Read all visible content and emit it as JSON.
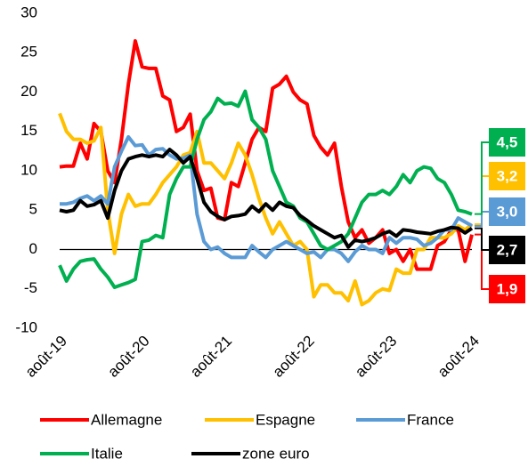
{
  "chart_data": {
    "type": "line",
    "categories": [
      "août-19",
      null,
      null,
      null,
      null,
      null,
      null,
      null,
      null,
      null,
      null,
      null,
      "août-20",
      null,
      null,
      null,
      null,
      null,
      null,
      null,
      null,
      null,
      null,
      null,
      "août-21",
      null,
      null,
      null,
      null,
      null,
      null,
      null,
      null,
      null,
      null,
      null,
      "août-22",
      null,
      null,
      null,
      null,
      null,
      null,
      null,
      null,
      null,
      null,
      null,
      "août-23",
      null,
      null,
      null,
      null,
      null,
      null,
      null,
      null,
      null,
      null,
      null,
      "août-24"
    ],
    "ylim": [
      -10,
      30
    ],
    "yticks": [
      -10,
      -5,
      0,
      5,
      10,
      15,
      20,
      25,
      30
    ],
    "grid": false,
    "series": [
      {
        "name": "Allemagne",
        "color": "#ff0000",
        "values": [
          10.5,
          10.6,
          10.6,
          13.5,
          11.5,
          16,
          15,
          10,
          8.5,
          14,
          21,
          26.5,
          23.2,
          23,
          23,
          19.5,
          19,
          15,
          15.5,
          17.2,
          10,
          7.5,
          7.8,
          4,
          3.8,
          8.5,
          8,
          11,
          14,
          15.5,
          15,
          20.5,
          21,
          22,
          20,
          19,
          18.5,
          14.5,
          13,
          12,
          13.5,
          8,
          3.5,
          1.5,
          2.5,
          0.8,
          1.5,
          2.5,
          -0.5,
          0,
          -1.5,
          0,
          -2.5,
          -2.5,
          -2.5,
          0.5,
          1,
          2.5,
          2.5,
          -1.5,
          1.9
        ],
        "value_labels": [
          null,
          null,
          null,
          null,
          null,
          null,
          null,
          null,
          null,
          null,
          null,
          null,
          null,
          null,
          null,
          null,
          null,
          null,
          null,
          null,
          null,
          null,
          null,
          null,
          null,
          null,
          null,
          null,
          null,
          null,
          null,
          null,
          null,
          null,
          null,
          null,
          null,
          null,
          null,
          null,
          null,
          null,
          null,
          null,
          null,
          null,
          null,
          null,
          null,
          null,
          null,
          null,
          null,
          null,
          null,
          null,
          null,
          null,
          null,
          null,
          "1,9"
        ]
      },
      {
        "name": "Espagne",
        "color": "#ffc000",
        "values": [
          17.3,
          15,
          14,
          14,
          13.5,
          13.8,
          15.5,
          5,
          -0.5,
          4.5,
          7,
          5.5,
          5.8,
          5.8,
          7,
          8.5,
          9.5,
          10.5,
          12,
          12.3,
          15,
          11,
          11,
          10,
          9,
          11,
          13.5,
          12,
          9.5,
          6.5,
          4,
          2,
          3.5,
          2,
          0.5,
          1,
          0,
          -6,
          -4.5,
          -4.5,
          -5.5,
          -5.5,
          -6.5,
          -4,
          -7,
          -6.5,
          -5.5,
          -5,
          -5.2,
          -2.5,
          -3,
          -3,
          0,
          0,
          1.5,
          1.5,
          1.5,
          2,
          3,
          2.5,
          3.2
        ],
        "value_labels": [
          null,
          null,
          null,
          null,
          null,
          null,
          null,
          null,
          null,
          null,
          null,
          null,
          null,
          null,
          null,
          null,
          null,
          null,
          null,
          null,
          null,
          null,
          null,
          null,
          null,
          null,
          null,
          null,
          null,
          null,
          null,
          null,
          null,
          null,
          null,
          null,
          null,
          null,
          null,
          null,
          null,
          null,
          null,
          null,
          null,
          null,
          null,
          null,
          null,
          null,
          null,
          null,
          null,
          null,
          null,
          null,
          null,
          null,
          null,
          null,
          "3,2"
        ]
      },
      {
        "name": "France",
        "color": "#5b9bd5",
        "values": [
          5.8,
          5.8,
          6,
          6.5,
          6.8,
          6.2,
          6.8,
          5.8,
          10.5,
          12.5,
          14.3,
          13.2,
          13.3,
          12,
          12.7,
          12.8,
          12,
          11.5,
          11.6,
          12,
          4.5,
          1,
          0,
          0.3,
          -0.5,
          -1,
          -1,
          -1,
          0.5,
          -0.3,
          -1,
          0,
          0.5,
          1,
          0.5,
          0,
          -0.5,
          -0.3,
          -1,
          0,
          0,
          -0.5,
          -1.5,
          -0.3,
          0.5,
          0,
          0,
          -0.5,
          1.5,
          0.8,
          1.5,
          1.5,
          1.3,
          0.5,
          0.8,
          1.5,
          2.5,
          2.5,
          4,
          3.5,
          3.0
        ],
        "value_labels": [
          null,
          null,
          null,
          null,
          null,
          null,
          null,
          null,
          null,
          null,
          null,
          null,
          null,
          null,
          null,
          null,
          null,
          null,
          null,
          null,
          null,
          null,
          null,
          null,
          null,
          null,
          null,
          null,
          null,
          null,
          null,
          null,
          null,
          null,
          null,
          null,
          null,
          null,
          null,
          null,
          null,
          null,
          null,
          null,
          null,
          null,
          null,
          null,
          null,
          null,
          null,
          null,
          null,
          null,
          null,
          null,
          null,
          null,
          null,
          null,
          "3,0"
        ]
      },
      {
        "name": "Italie",
        "color": "#00b050",
        "values": [
          -2,
          -4,
          -2.5,
          -1.5,
          -1.3,
          -1.2,
          -2.5,
          -3.5,
          -4.8,
          -4.5,
          -4.2,
          -3.8,
          1,
          1.2,
          1.8,
          1.5,
          7,
          9,
          10.5,
          10.5,
          14,
          16.5,
          17.5,
          19.2,
          18.5,
          18.6,
          18.2,
          20.1,
          16.5,
          15.5,
          14,
          10,
          8,
          6,
          5.5,
          4,
          3.5,
          2,
          0.5,
          0,
          0.5,
          1,
          2,
          4,
          6,
          7,
          7,
          7.5,
          7,
          8,
          9.5,
          8.5,
          10,
          10.5,
          10.3,
          9,
          8.5,
          7,
          5,
          4.8,
          4.5
        ],
        "value_labels": [
          null,
          null,
          null,
          null,
          null,
          null,
          null,
          null,
          null,
          null,
          null,
          null,
          null,
          null,
          null,
          null,
          null,
          null,
          null,
          null,
          null,
          null,
          null,
          null,
          null,
          null,
          null,
          null,
          null,
          null,
          null,
          null,
          null,
          null,
          null,
          null,
          null,
          null,
          null,
          null,
          null,
          null,
          null,
          null,
          null,
          null,
          null,
          null,
          null,
          null,
          null,
          null,
          null,
          null,
          null,
          null,
          null,
          null,
          null,
          null,
          "4,5"
        ]
      },
      {
        "name": "zone euro",
        "color": "#000000",
        "values": [
          5,
          4.8,
          5,
          6.2,
          5.5,
          5.7,
          6.2,
          4,
          7.5,
          10,
          11.5,
          11.8,
          12,
          11.8,
          12,
          11.8,
          12.7,
          12,
          11,
          11.8,
          9,
          6,
          4.8,
          4.2,
          3.8,
          4.2,
          4.3,
          4.5,
          5.5,
          4.8,
          5.8,
          5,
          6,
          5.5,
          5.3,
          4.3,
          3.7,
          3,
          2.5,
          2,
          1.5,
          1.8,
          0.3,
          1.2,
          1,
          1.2,
          1.5,
          2,
          2.3,
          1.7,
          2.5,
          2.4,
          2.2,
          2.1,
          2,
          2.3,
          2.5,
          2.8,
          2.7,
          2.1,
          2.7
        ],
        "value_labels": [
          null,
          null,
          null,
          null,
          null,
          null,
          null,
          null,
          null,
          null,
          null,
          null,
          null,
          null,
          null,
          null,
          null,
          null,
          null,
          null,
          null,
          null,
          null,
          null,
          null,
          null,
          null,
          null,
          null,
          null,
          null,
          null,
          null,
          null,
          null,
          null,
          null,
          null,
          null,
          null,
          null,
          null,
          null,
          null,
          null,
          null,
          null,
          null,
          null,
          null,
          null,
          null,
          null,
          null,
          null,
          null,
          null,
          null,
          null,
          null,
          "2,7"
        ]
      }
    ]
  }
}
